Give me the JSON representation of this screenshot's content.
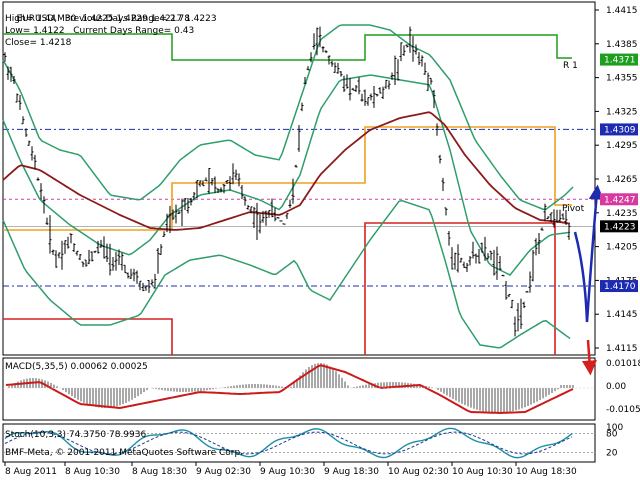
{
  "header": {
    "symbol": "EURUSD,M30",
    "ohlc": "1.4225 1.4229 1.4217 1.4223",
    "high": "High= 1.44",
    "prev_range": "Previous Days Range= 2.78",
    "low": "Low= 1.4122",
    "curr_range": "Current Days Range= 0.43",
    "close": "Close= 1.4218"
  },
  "price_axis": {
    "ticks": [
      "1.4415",
      "1.4385",
      "1.4355",
      "1.4325",
      "1.4295",
      "1.4265",
      "1.4235",
      "1.4205",
      "1.4175",
      "1.4145",
      "1.4115"
    ],
    "badges": [
      {
        "value": "1.4371",
        "color": "#1e9e1e"
      },
      {
        "value": "1.4309",
        "color": "#1d2bb0"
      },
      {
        "value": "1.4247",
        "color": "#d63aa0"
      },
      {
        "value": "1.4223",
        "color": "#000000"
      },
      {
        "value": "1.4170",
        "color": "#1d2bb0"
      }
    ]
  },
  "level_labels": {
    "r1": "R 1",
    "pivot": "Pivot"
  },
  "macd": {
    "label": "MACD(5,35,5) 0.00062 0.00025",
    "ticks": [
      "0.01018",
      "0.00",
      "-0.01052"
    ]
  },
  "stoch": {
    "label": "Stoch(10,3,3) 74.3750 78.9936",
    "ticks": [
      "100",
      "80",
      "20"
    ]
  },
  "copyright": "BMF-Meta, © 2001-2011 MetaQuotes Software Corp.",
  "time_axis": [
    "8 Aug 2011",
    "8 Aug 10:30",
    "8 Aug 18:30",
    "9 Aug 02:30",
    "9 Aug 10:30",
    "9 Aug 18:30",
    "10 Aug 02:30",
    "10 Aug 10:30",
    "10 Aug 18:30"
  ],
  "colors": {
    "bollinger": "#2e9e6a",
    "ma": "#8b1a1a",
    "r1": "#1e9e1e",
    "pivot": "#f0a020",
    "s1": "#d62020",
    "dash_blue": "#1d2bb0",
    "dash_pink": "#d63aa0",
    "forecast_up": "#1d2bb0",
    "forecast_down": "#d62020"
  }
}
